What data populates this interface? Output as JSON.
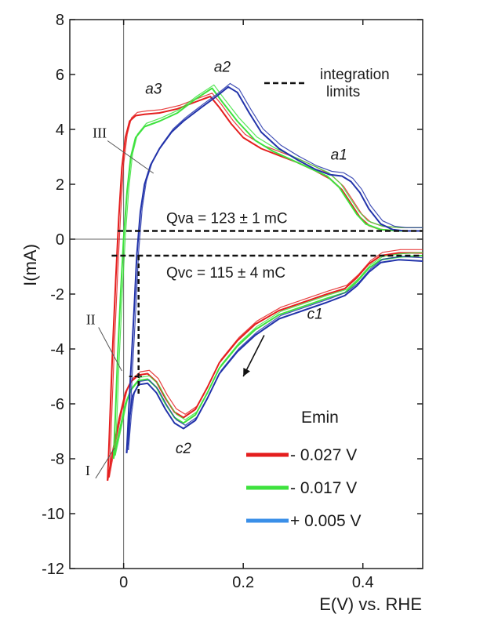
{
  "chart_data": {
    "type": "line",
    "title": "",
    "xlabel": "E(V) vs. RHE",
    "ylabel": "I(mA)",
    "xlim": [
      -0.09,
      0.5
    ],
    "ylim": [
      -12,
      8
    ],
    "xticks": [
      0,
      0.2,
      0.4
    ],
    "xtick_labels": [
      "0",
      "0.2",
      "0.4"
    ],
    "yticks": [
      -12,
      -10,
      -8,
      -6,
      -4,
      -2,
      0,
      2,
      4,
      6,
      8
    ],
    "ytick_labels": [
      "-12",
      "-10",
      "-8",
      "-6",
      "-4",
      "-2",
      "0",
      "2",
      "4",
      "6",
      "8"
    ],
    "grid": false,
    "legend": {
      "title": "Emin",
      "placement": "bottom-right",
      "entries": [
        {
          "label": "- 0.027 V",
          "color": "#e41e1e"
        },
        {
          "label": "- 0.017 V",
          "color": "#3ee23e"
        },
        {
          "label": "+ 0.005 V",
          "color": "#3a8fe8"
        }
      ]
    },
    "integration_legend": "integration limits",
    "integration_legend_lines": [
      "integration",
      "limits"
    ],
    "integration_limits": [
      {
        "label": "Qva = 123 ± 1 mC",
        "y": 0.3,
        "x_start": -0.01,
        "x_end": 0.5
      },
      {
        "label": "Qvc = 115 ± 4 mC",
        "y": -0.6,
        "x_start": -0.02,
        "x_end": 0.5
      }
    ],
    "integration_vertical": {
      "x": 0.025,
      "y_start": -0.6,
      "y_end": -5.7
    },
    "peak_labels": [
      {
        "label": "a3",
        "x": 0.05,
        "y": 5.3
      },
      {
        "label": "a2",
        "x": 0.165,
        "y": 6.1
      },
      {
        "label": "a1",
        "x": 0.36,
        "y": 2.9
      },
      {
        "label": "c1",
        "x": 0.32,
        "y": -2.9
      },
      {
        "label": "c2",
        "x": 0.1,
        "y": -7.8
      }
    ],
    "region_labels": [
      {
        "label": "III",
        "x": -0.04,
        "y": 3.7,
        "point_x": 0.05,
        "point_y": 2.4
      },
      {
        "label": "II",
        "x": -0.055,
        "y": -3.1,
        "point_x": -0.003,
        "point_y": -4.8
      },
      {
        "label": "I",
        "x": -0.06,
        "y": -8.6,
        "point_x": -0.015,
        "point_y": -7.6
      }
    ],
    "scan_arrow": {
      "from": [
        0.235,
        -3.5
      ],
      "to": [
        0.2,
        -5.0
      ]
    },
    "series": [
      {
        "color": "#e41e1e",
        "anodic": [
          [
            -0.027,
            -8.8
          ],
          [
            -0.025,
            -7.8
          ],
          [
            -0.022,
            -6.0
          ],
          [
            -0.018,
            -3.8
          ],
          [
            -0.013,
            -1.4
          ],
          [
            -0.008,
            0.8
          ],
          [
            -0.003,
            2.6
          ],
          [
            0.003,
            3.7
          ],
          [
            0.01,
            4.3
          ],
          [
            0.02,
            4.5
          ],
          [
            0.035,
            4.55
          ],
          [
            0.06,
            4.6
          ],
          [
            0.09,
            4.75
          ],
          [
            0.12,
            5.0
          ],
          [
            0.145,
            5.2
          ],
          [
            0.16,
            4.8
          ],
          [
            0.18,
            4.2
          ],
          [
            0.2,
            3.7
          ],
          [
            0.23,
            3.3
          ],
          [
            0.26,
            3.05
          ],
          [
            0.29,
            2.8
          ],
          [
            0.32,
            2.5
          ],
          [
            0.345,
            2.2
          ],
          [
            0.365,
            1.8
          ],
          [
            0.38,
            1.3
          ],
          [
            0.395,
            0.8
          ],
          [
            0.41,
            0.5
          ],
          [
            0.43,
            0.35
          ],
          [
            0.46,
            0.3
          ],
          [
            0.5,
            0.3
          ]
        ],
        "cathodic": [
          [
            0.5,
            -0.5
          ],
          [
            0.46,
            -0.5
          ],
          [
            0.43,
            -0.6
          ],
          [
            0.41,
            -0.9
          ],
          [
            0.39,
            -1.4
          ],
          [
            0.37,
            -1.8
          ],
          [
            0.34,
            -2.0
          ],
          [
            0.3,
            -2.3
          ],
          [
            0.26,
            -2.6
          ],
          [
            0.22,
            -3.1
          ],
          [
            0.19,
            -3.7
          ],
          [
            0.16,
            -4.5
          ],
          [
            0.14,
            -5.4
          ],
          [
            0.12,
            -6.2
          ],
          [
            0.1,
            -6.5
          ],
          [
            0.085,
            -6.3
          ],
          [
            0.07,
            -5.8
          ],
          [
            0.055,
            -5.2
          ],
          [
            0.04,
            -4.9
          ],
          [
            0.025,
            -4.95
          ],
          [
            0.012,
            -5.2
          ],
          [
            0.003,
            -5.6
          ],
          [
            -0.007,
            -6.5
          ],
          [
            -0.017,
            -7.6
          ],
          [
            -0.027,
            -8.8
          ]
        ]
      },
      {
        "color": "#3ee23e",
        "anodic": [
          [
            -0.017,
            -8.0
          ],
          [
            -0.014,
            -6.5
          ],
          [
            -0.01,
            -4.3
          ],
          [
            -0.005,
            -2.0
          ],
          [
            0.0,
            0.0
          ],
          [
            0.006,
            1.8
          ],
          [
            0.012,
            3.0
          ],
          [
            0.02,
            3.7
          ],
          [
            0.035,
            4.1
          ],
          [
            0.06,
            4.3
          ],
          [
            0.09,
            4.6
          ],
          [
            0.12,
            5.1
          ],
          [
            0.148,
            5.5
          ],
          [
            0.165,
            5.0
          ],
          [
            0.19,
            4.3
          ],
          [
            0.22,
            3.6
          ],
          [
            0.25,
            3.2
          ],
          [
            0.28,
            2.9
          ],
          [
            0.31,
            2.6
          ],
          [
            0.34,
            2.3
          ],
          [
            0.36,
            1.9
          ],
          [
            0.375,
            1.4
          ],
          [
            0.39,
            0.9
          ],
          [
            0.405,
            0.55
          ],
          [
            0.43,
            0.35
          ],
          [
            0.46,
            0.3
          ],
          [
            0.5,
            0.3
          ]
        ],
        "cathodic": [
          [
            0.5,
            -0.6
          ],
          [
            0.46,
            -0.65
          ],
          [
            0.43,
            -0.75
          ],
          [
            0.41,
            -1.05
          ],
          [
            0.39,
            -1.55
          ],
          [
            0.37,
            -1.95
          ],
          [
            0.34,
            -2.15
          ],
          [
            0.3,
            -2.45
          ],
          [
            0.26,
            -2.75
          ],
          [
            0.22,
            -3.3
          ],
          [
            0.19,
            -3.9
          ],
          [
            0.16,
            -4.7
          ],
          [
            0.14,
            -5.6
          ],
          [
            0.12,
            -6.4
          ],
          [
            0.1,
            -6.7
          ],
          [
            0.085,
            -6.5
          ],
          [
            0.07,
            -6.0
          ],
          [
            0.055,
            -5.4
          ],
          [
            0.04,
            -5.1
          ],
          [
            0.025,
            -5.15
          ],
          [
            0.012,
            -5.5
          ],
          [
            0.003,
            -6.0
          ],
          [
            -0.007,
            -7.0
          ],
          [
            -0.017,
            -8.0
          ]
        ]
      },
      {
        "color": "#2233aa",
        "anodic": [
          [
            0.005,
            -7.8
          ],
          [
            0.008,
            -6.5
          ],
          [
            0.012,
            -4.8
          ],
          [
            0.017,
            -2.8
          ],
          [
            0.022,
            -0.6
          ],
          [
            0.028,
            1.0
          ],
          [
            0.035,
            2.0
          ],
          [
            0.045,
            2.7
          ],
          [
            0.06,
            3.3
          ],
          [
            0.08,
            3.9
          ],
          [
            0.1,
            4.3
          ],
          [
            0.13,
            4.8
          ],
          [
            0.155,
            5.2
          ],
          [
            0.175,
            5.55
          ],
          [
            0.19,
            5.35
          ],
          [
            0.21,
            4.6
          ],
          [
            0.23,
            3.9
          ],
          [
            0.26,
            3.3
          ],
          [
            0.29,
            2.9
          ],
          [
            0.32,
            2.55
          ],
          [
            0.345,
            2.35
          ],
          [
            0.365,
            2.3
          ],
          [
            0.38,
            2.1
          ],
          [
            0.395,
            1.7
          ],
          [
            0.41,
            1.1
          ],
          [
            0.43,
            0.55
          ],
          [
            0.45,
            0.35
          ],
          [
            0.47,
            0.3
          ],
          [
            0.5,
            0.3
          ]
        ],
        "cathodic": [
          [
            0.5,
            -0.8
          ],
          [
            0.46,
            -0.75
          ],
          [
            0.43,
            -0.85
          ],
          [
            0.41,
            -1.2
          ],
          [
            0.39,
            -1.7
          ],
          [
            0.37,
            -2.05
          ],
          [
            0.34,
            -2.3
          ],
          [
            0.3,
            -2.6
          ],
          [
            0.26,
            -2.9
          ],
          [
            0.22,
            -3.5
          ],
          [
            0.19,
            -4.1
          ],
          [
            0.16,
            -4.9
          ],
          [
            0.14,
            -5.8
          ],
          [
            0.12,
            -6.6
          ],
          [
            0.1,
            -6.9
          ],
          [
            0.085,
            -6.7
          ],
          [
            0.07,
            -6.2
          ],
          [
            0.055,
            -5.6
          ],
          [
            0.04,
            -5.25
          ],
          [
            0.025,
            -5.3
          ],
          [
            0.015,
            -5.7
          ],
          [
            0.01,
            -6.5
          ],
          [
            0.005,
            -7.8
          ]
        ]
      }
    ]
  }
}
